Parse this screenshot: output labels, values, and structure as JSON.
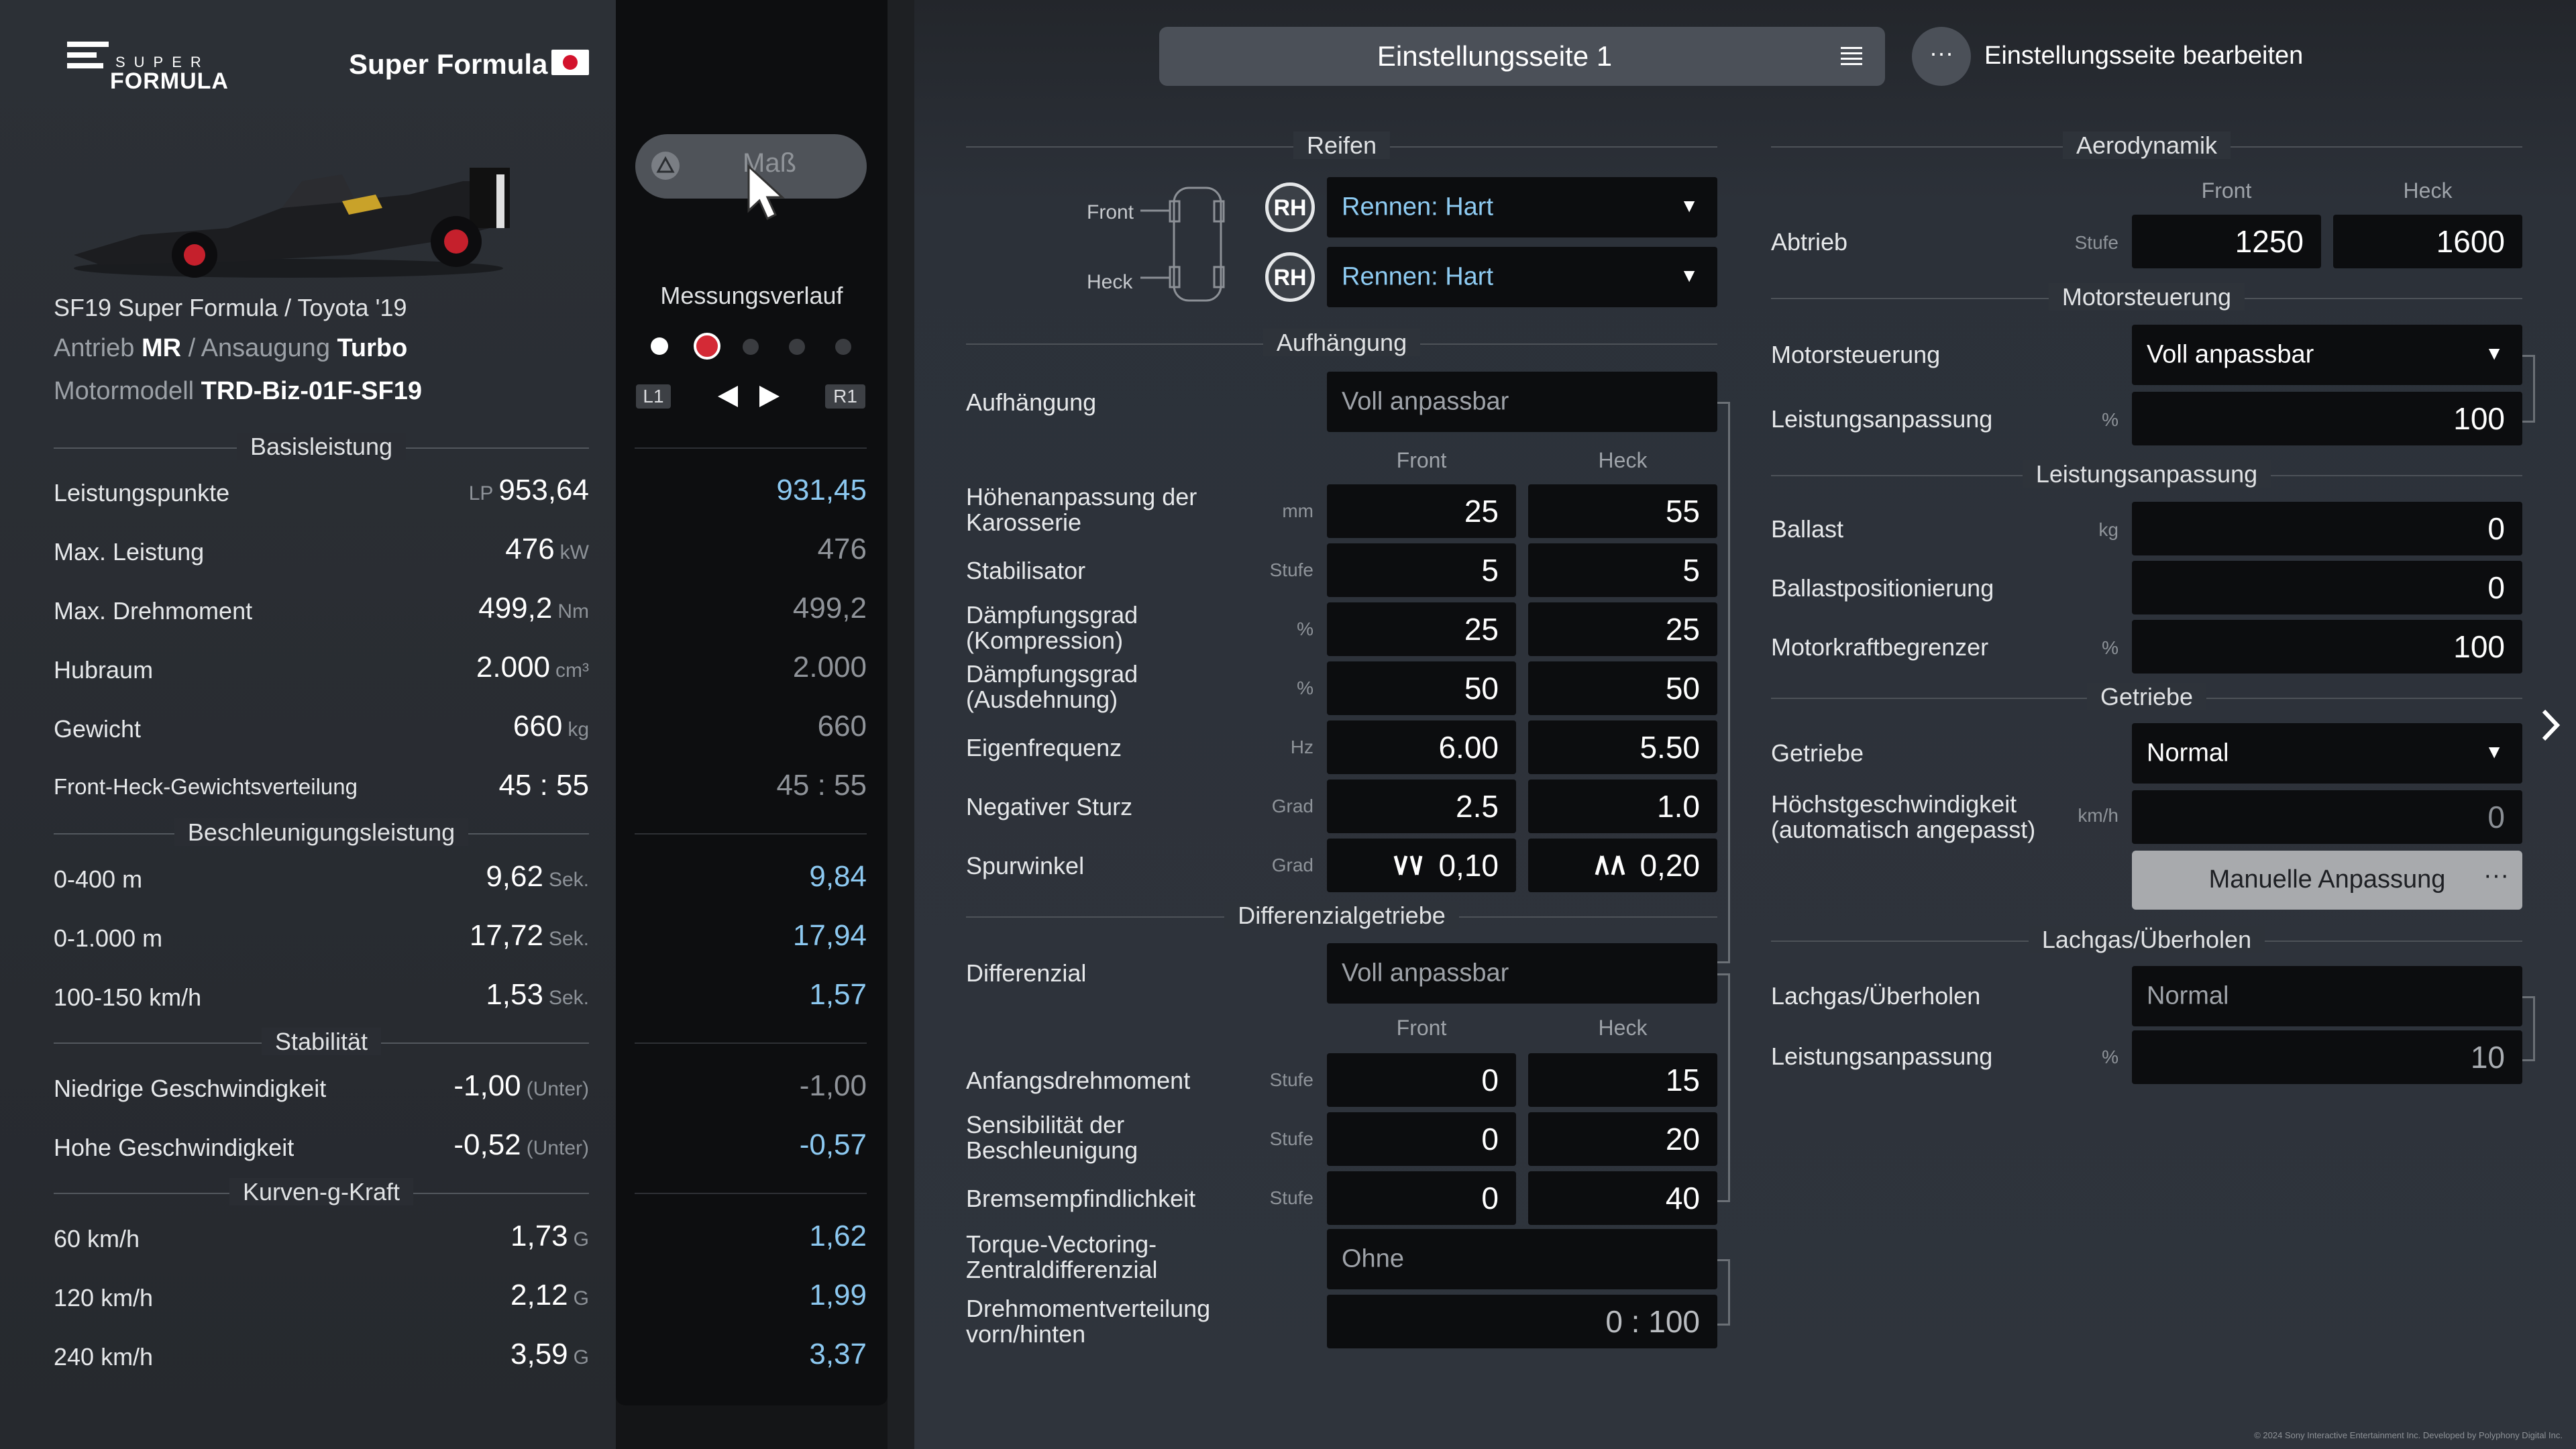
{
  "brand": {
    "line1": "SUPER",
    "line2": "FORMULA",
    "series": "Super Formula"
  },
  "car": {
    "name": "SF19 Super Formula / Toyota '19",
    "drive_label": "Antrieb",
    "drive": "MR",
    "sep": "/",
    "aspiration_label": "Ansaugung",
    "aspiration": "Turbo",
    "engine_label": "Motormodell",
    "engine": "TRD-Biz-01F-SF19"
  },
  "basis": {
    "title": "Basisleistung",
    "rows": [
      {
        "label": "Leistungspunkte",
        "prefix": "LP",
        "value": "953,64",
        "unit": "",
        "meas": "931,45"
      },
      {
        "label": "Max. Leistung",
        "prefix": "",
        "value": "476",
        "unit": "kW",
        "meas": "476"
      },
      {
        "label": "Max. Drehmoment",
        "prefix": "",
        "value": "499,2",
        "unit": "Nm",
        "meas": "499,2"
      },
      {
        "label": "Hubraum",
        "prefix": "",
        "value": "2.000",
        "unit": "cm³",
        "meas": "2.000"
      },
      {
        "label": "Gewicht",
        "prefix": "",
        "value": "660",
        "unit": "kg",
        "meas": "660"
      },
      {
        "label": "Front-Heck-Gewichtsverteilung",
        "prefix": "",
        "value": "45 : 55",
        "unit": "",
        "meas": "45 : 55"
      }
    ]
  },
  "accel": {
    "title": "Beschleunigungsleistung",
    "rows": [
      {
        "label": "0-400 m",
        "value": "9,62",
        "unit": "Sek.",
        "meas": "9,84"
      },
      {
        "label": "0-1.000 m",
        "value": "17,72",
        "unit": "Sek.",
        "meas": "17,94"
      },
      {
        "label": "100-150 km/h",
        "value": "1,53",
        "unit": "Sek.",
        "meas": "1,57"
      }
    ]
  },
  "stab": {
    "title": "Stabilität",
    "rows": [
      {
        "label": "Niedrige Geschwindigkeit",
        "value": "-1,00",
        "unit": "(Unter)",
        "meas": "-1,00"
      },
      {
        "label": "Hohe Geschwindigkeit",
        "value": "-0,52",
        "unit": "(Unter)",
        "meas": "-0,57"
      }
    ]
  },
  "gforce": {
    "title": "Kurven-g-Kraft",
    "rows": [
      {
        "label": "60 km/h",
        "value": "1,73",
        "unit": "G",
        "meas": "1,62"
      },
      {
        "label": "120 km/h",
        "value": "2,12",
        "unit": "G",
        "meas": "1,99"
      },
      {
        "label": "240 km/h",
        "value": "3,59",
        "unit": "G",
        "meas": "3,37"
      }
    ]
  },
  "measure": {
    "button": "Maß",
    "history": "Messungsverlauf",
    "l1": "L1",
    "r1": "R1"
  },
  "header": {
    "page": "Einstellungsseite 1",
    "edit": "Einstellungsseite bearbeiten"
  },
  "tires": {
    "title": "Reifen",
    "front": "Front",
    "rear": "Heck",
    "badge": "RH",
    "front_tire": "Rennen: Hart",
    "rear_tire": "Rennen: Hart"
  },
  "suspension": {
    "title": "Aufhängung",
    "label": "Aufhängung",
    "value": "Voll anpassbar",
    "col_front": "Front",
    "col_rear": "Heck",
    "rows": [
      {
        "label": "Höhenanpassung der Karosserie",
        "unit": "mm",
        "front": "25",
        "rear": "55"
      },
      {
        "label": "Stabilisator",
        "unit": "Stufe",
        "front": "5",
        "rear": "5"
      },
      {
        "label": "Dämpfungsgrad (Kompression)",
        "unit": "%",
        "front": "25",
        "rear": "25"
      },
      {
        "label": "Dämpfungsgrad (Ausdehnung)",
        "unit": "%",
        "front": "50",
        "rear": "50"
      },
      {
        "label": "Eigenfrequenz",
        "unit": "Hz",
        "front": "6.00",
        "rear": "5.50"
      },
      {
        "label": "Negativer Sturz",
        "unit": "Grad",
        "front": "2.5",
        "rear": "1.0"
      },
      {
        "label": "Spurwinkel",
        "unit": "Grad",
        "front": "0,10",
        "rear": "0,20"
      }
    ]
  },
  "diff": {
    "title": "Differenzialgetriebe",
    "label": "Differenzial",
    "value": "Voll anpassbar",
    "col_front": "Front",
    "col_rear": "Heck",
    "rows": [
      {
        "label": "Anfangsdrehmoment",
        "unit": "Stufe",
        "front": "0",
        "rear": "15"
      },
      {
        "label": "Sensibilität der Beschleunigung",
        "unit": "Stufe",
        "front": "0",
        "rear": "20"
      },
      {
        "label": "Bremsempfindlichkeit",
        "unit": "Stufe",
        "front": "0",
        "rear": "40"
      }
    ],
    "tv_label": "Torque-Vectoring-Zentraldifferenzial",
    "tv_value": "Ohne",
    "dist_label": "Drehmomentverteilung vorn/hinten",
    "dist_value": "0 : 100"
  },
  "aero": {
    "title": "Aerodynamik",
    "col_front": "Front",
    "col_rear": "Heck",
    "label": "Abtrieb",
    "unit": "Stufe",
    "front": "1250",
    "rear": "1600"
  },
  "engine": {
    "title": "Motorsteuerung",
    "label": "Motorsteuerung",
    "value": "Voll anpassbar",
    "power_label": "Leistungsanpassung",
    "power_unit": "%",
    "power": "100"
  },
  "perf": {
    "title": "Leistungsanpassung",
    "rows": [
      {
        "label": "Ballast",
        "unit": "kg",
        "value": "0"
      },
      {
        "label": "Ballastpositionierung",
        "unit": "",
        "value": "0"
      },
      {
        "label": "Motorkraftbegrenzer",
        "unit": "%",
        "value": "100"
      }
    ]
  },
  "gearbox": {
    "title": "Getriebe",
    "label": "Getriebe",
    "value": "Normal",
    "top_label": "Höchstgeschwindigkeit (automatisch angepasst)",
    "top_unit": "km/h",
    "top": "0",
    "manual": "Manuelle Anpassung"
  },
  "nitro": {
    "title": "Lachgas/Überholen",
    "label": "Lachgas/Überholen",
    "value": "Normal",
    "power_label": "Leistungsanpassung",
    "power_unit": "%",
    "power": "10"
  },
  "footer": "© 2024 Sony Interactive Entertainment Inc. Developed by Polyphony Digital Inc.",
  "colors": {
    "accent": "#8ecbf2",
    "blue_value": "#8cc8f0",
    "field_bg": "#0c0d0f"
  }
}
